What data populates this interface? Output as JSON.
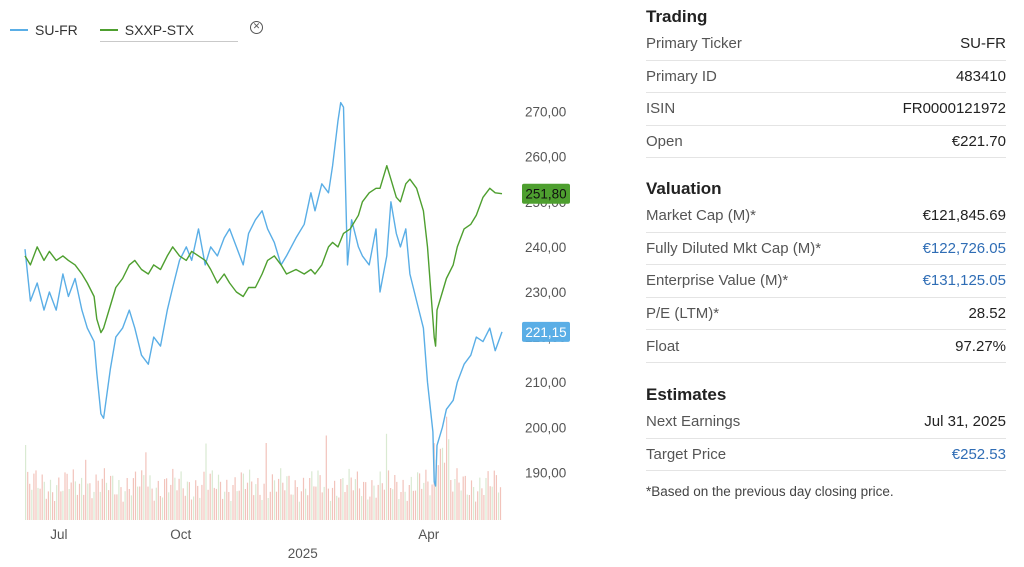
{
  "legend": {
    "series1": {
      "label": "SU-FR",
      "color": "#5aaee6"
    },
    "series2": {
      "label": "SXXP-STX",
      "color": "#4e9f2f"
    }
  },
  "colors": {
    "volume_up": "#f2c3bb",
    "volume_flat": "#d9ead2"
  },
  "chart_data": {
    "type": "line",
    "y_ticks": [
      "270,00",
      "260,00",
      "250,00",
      "240,00",
      "230,00",
      "220,00",
      "210,00",
      "200,00",
      "190,00"
    ],
    "ylim": [
      185,
      277
    ],
    "x_ticks": [
      "Jul",
      "Oct",
      "Apr"
    ],
    "x_year_label": "2025",
    "x_range": [
      "2024-06-10",
      "2025-05-28"
    ],
    "series": [
      {
        "name": "SU-FR",
        "color": "#5aaee6",
        "last_label": "221,15",
        "points": [
          [
            "2024-06-10",
            239.5
          ],
          [
            "2024-06-14",
            228
          ],
          [
            "2024-06-19",
            232
          ],
          [
            "2024-06-24",
            226
          ],
          [
            "2024-06-28",
            230
          ],
          [
            "2024-07-03",
            226
          ],
          [
            "2024-07-08",
            234
          ],
          [
            "2024-07-12",
            229
          ],
          [
            "2024-07-17",
            233
          ],
          [
            "2024-07-22",
            226
          ],
          [
            "2024-07-26",
            222
          ],
          [
            "2024-07-31",
            219
          ],
          [
            "2024-08-02",
            212
          ],
          [
            "2024-08-05",
            203
          ],
          [
            "2024-08-07",
            202
          ],
          [
            "2024-08-12",
            213
          ],
          [
            "2024-08-16",
            220
          ],
          [
            "2024-08-21",
            222
          ],
          [
            "2024-08-26",
            226
          ],
          [
            "2024-08-30",
            222
          ],
          [
            "2024-09-04",
            216
          ],
          [
            "2024-09-09",
            214
          ],
          [
            "2024-09-13",
            220
          ],
          [
            "2024-09-18",
            218
          ],
          [
            "2024-09-23",
            226
          ],
          [
            "2024-09-27",
            231
          ],
          [
            "2024-10-02",
            237
          ],
          [
            "2024-10-07",
            240
          ],
          [
            "2024-10-11",
            237
          ],
          [
            "2024-10-16",
            244
          ],
          [
            "2024-10-21",
            236
          ],
          [
            "2024-10-25",
            240
          ],
          [
            "2024-10-30",
            238
          ],
          [
            "2024-11-04",
            242
          ],
          [
            "2024-11-08",
            244
          ],
          [
            "2024-11-13",
            240
          ],
          [
            "2024-11-18",
            236
          ],
          [
            "2024-11-22",
            243
          ],
          [
            "2024-11-27",
            246
          ],
          [
            "2024-12-02",
            248
          ],
          [
            "2024-12-06",
            244
          ],
          [
            "2024-12-11",
            241
          ],
          [
            "2024-12-16",
            236
          ],
          [
            "2024-12-20",
            238
          ],
          [
            "2024-12-27",
            242
          ],
          [
            "2025-01-02",
            245
          ],
          [
            "2025-01-07",
            252
          ],
          [
            "2025-01-10",
            248
          ],
          [
            "2025-01-15",
            254
          ],
          [
            "2025-01-20",
            252
          ],
          [
            "2025-01-23",
            258
          ],
          [
            "2025-01-27",
            268
          ],
          [
            "2025-01-29",
            272
          ],
          [
            "2025-01-31",
            271
          ],
          [
            "2025-02-03",
            236
          ],
          [
            "2025-02-06",
            246
          ],
          [
            "2025-02-11",
            240
          ],
          [
            "2025-02-14",
            238
          ],
          [
            "2025-02-19",
            236
          ],
          [
            "2025-02-24",
            244
          ],
          [
            "2025-02-27",
            230
          ],
          [
            "2025-03-04",
            238
          ],
          [
            "2025-03-07",
            250
          ],
          [
            "2025-03-11",
            243
          ],
          [
            "2025-03-14",
            240
          ],
          [
            "2025-03-18",
            244
          ],
          [
            "2025-03-21",
            234
          ],
          [
            "2025-03-26",
            228
          ],
          [
            "2025-03-31",
            222
          ],
          [
            "2025-04-03",
            210
          ],
          [
            "2025-04-07",
            199
          ],
          [
            "2025-04-08",
            188
          ],
          [
            "2025-04-09",
            187
          ],
          [
            "2025-04-10",
            196
          ],
          [
            "2025-04-14",
            200
          ],
          [
            "2025-04-17",
            204
          ],
          [
            "2025-04-22",
            206
          ],
          [
            "2025-04-25",
            210
          ],
          [
            "2025-04-30",
            214
          ],
          [
            "2025-05-05",
            216
          ],
          [
            "2025-05-09",
            220
          ],
          [
            "2025-05-14",
            219
          ],
          [
            "2025-05-19",
            222
          ],
          [
            "2025-05-23",
            217
          ],
          [
            "2025-05-28",
            221.15
          ]
        ]
      },
      {
        "name": "SXXP-STX",
        "color": "#4e9f2f",
        "last_label": "251,80",
        "points": [
          [
            "2024-06-10",
            238
          ],
          [
            "2024-06-14",
            236
          ],
          [
            "2024-06-19",
            240
          ],
          [
            "2024-06-24",
            237
          ],
          [
            "2024-06-28",
            239
          ],
          [
            "2024-07-03",
            237
          ],
          [
            "2024-07-08",
            238
          ],
          [
            "2024-07-12",
            237
          ],
          [
            "2024-07-17",
            236
          ],
          [
            "2024-07-22",
            234
          ],
          [
            "2024-07-26",
            232
          ],
          [
            "2024-07-31",
            229
          ],
          [
            "2024-08-02",
            224
          ],
          [
            "2024-08-05",
            221
          ],
          [
            "2024-08-07",
            222
          ],
          [
            "2024-08-12",
            227
          ],
          [
            "2024-08-16",
            231
          ],
          [
            "2024-08-21",
            233
          ],
          [
            "2024-08-26",
            236
          ],
          [
            "2024-08-30",
            237
          ],
          [
            "2024-09-04",
            235
          ],
          [
            "2024-09-09",
            234
          ],
          [
            "2024-09-13",
            236
          ],
          [
            "2024-09-18",
            235
          ],
          [
            "2024-09-23",
            238
          ],
          [
            "2024-09-27",
            240
          ],
          [
            "2024-10-02",
            238
          ],
          [
            "2024-10-07",
            237
          ],
          [
            "2024-10-11",
            239
          ],
          [
            "2024-10-16",
            238
          ],
          [
            "2024-10-21",
            237
          ],
          [
            "2024-10-25",
            235
          ],
          [
            "2024-10-30",
            232
          ],
          [
            "2024-11-04",
            234
          ],
          [
            "2024-11-08",
            232
          ],
          [
            "2024-11-13",
            230
          ],
          [
            "2024-11-18",
            229
          ],
          [
            "2024-11-22",
            231
          ],
          [
            "2024-11-27",
            231
          ],
          [
            "2024-12-02",
            234
          ],
          [
            "2024-12-06",
            237
          ],
          [
            "2024-12-11",
            238
          ],
          [
            "2024-12-16",
            236
          ],
          [
            "2024-12-20",
            234
          ],
          [
            "2024-12-27",
            235
          ],
          [
            "2025-01-02",
            234
          ],
          [
            "2025-01-07",
            235
          ],
          [
            "2025-01-10",
            234
          ],
          [
            "2025-01-15",
            236
          ],
          [
            "2025-01-20",
            240
          ],
          [
            "2025-01-23",
            241
          ],
          [
            "2025-01-27",
            240
          ],
          [
            "2025-01-31",
            243
          ],
          [
            "2025-02-05",
            244
          ],
          [
            "2025-02-11",
            247
          ],
          [
            "2025-02-14",
            250
          ],
          [
            "2025-02-19",
            252
          ],
          [
            "2025-02-24",
            253
          ],
          [
            "2025-02-27",
            253
          ],
          [
            "2025-03-04",
            258
          ],
          [
            "2025-03-07",
            255
          ],
          [
            "2025-03-11",
            251
          ],
          [
            "2025-03-14",
            250
          ],
          [
            "2025-03-18",
            254
          ],
          [
            "2025-03-21",
            255
          ],
          [
            "2025-03-26",
            253
          ],
          [
            "2025-03-31",
            248
          ],
          [
            "2025-04-03",
            240
          ],
          [
            "2025-04-07",
            224
          ],
          [
            "2025-04-08",
            220
          ],
          [
            "2025-04-09",
            218
          ],
          [
            "2025-04-10",
            226
          ],
          [
            "2025-04-14",
            230
          ],
          [
            "2025-04-17",
            233
          ],
          [
            "2025-04-22",
            236
          ],
          [
            "2025-04-25",
            240
          ],
          [
            "2025-04-30",
            244
          ],
          [
            "2025-05-05",
            245
          ],
          [
            "2025-05-09",
            247
          ],
          [
            "2025-05-14",
            251
          ],
          [
            "2025-05-19",
            253
          ],
          [
            "2025-05-23",
            252
          ],
          [
            "2025-05-28",
            251.8
          ]
        ]
      }
    ]
  },
  "panel": {
    "trading": {
      "title": "Trading",
      "rows": [
        {
          "label": "Primary Ticker",
          "value": "SU-FR",
          "link": false
        },
        {
          "label": "Primary ID",
          "value": "483410",
          "link": false
        },
        {
          "label": "ISIN",
          "value": "FR0000121972",
          "link": false
        },
        {
          "label": "Open",
          "value": "€221.70",
          "link": false
        }
      ]
    },
    "valuation": {
      "title": "Valuation",
      "rows": [
        {
          "label": "Market Cap (M)*",
          "value": "€121,845.69",
          "link": false
        },
        {
          "label": "Fully Diluted Mkt Cap (M)*",
          "value": "€122,726.05",
          "link": true
        },
        {
          "label": "Enterprise Value (M)*",
          "value": "€131,125.05",
          "link": true
        },
        {
          "label": "P/E (LTM)*",
          "value": "28.52",
          "link": false
        },
        {
          "label": "Float",
          "value": "97.27%",
          "link": false
        }
      ]
    },
    "estimates": {
      "title": "Estimates",
      "rows": [
        {
          "label": "Next Earnings",
          "value": "Jul 31, 2025",
          "link": false
        },
        {
          "label": "Target Price",
          "value": "€252.53",
          "link": true
        }
      ]
    },
    "footnote": "*Based on the previous day closing price."
  }
}
